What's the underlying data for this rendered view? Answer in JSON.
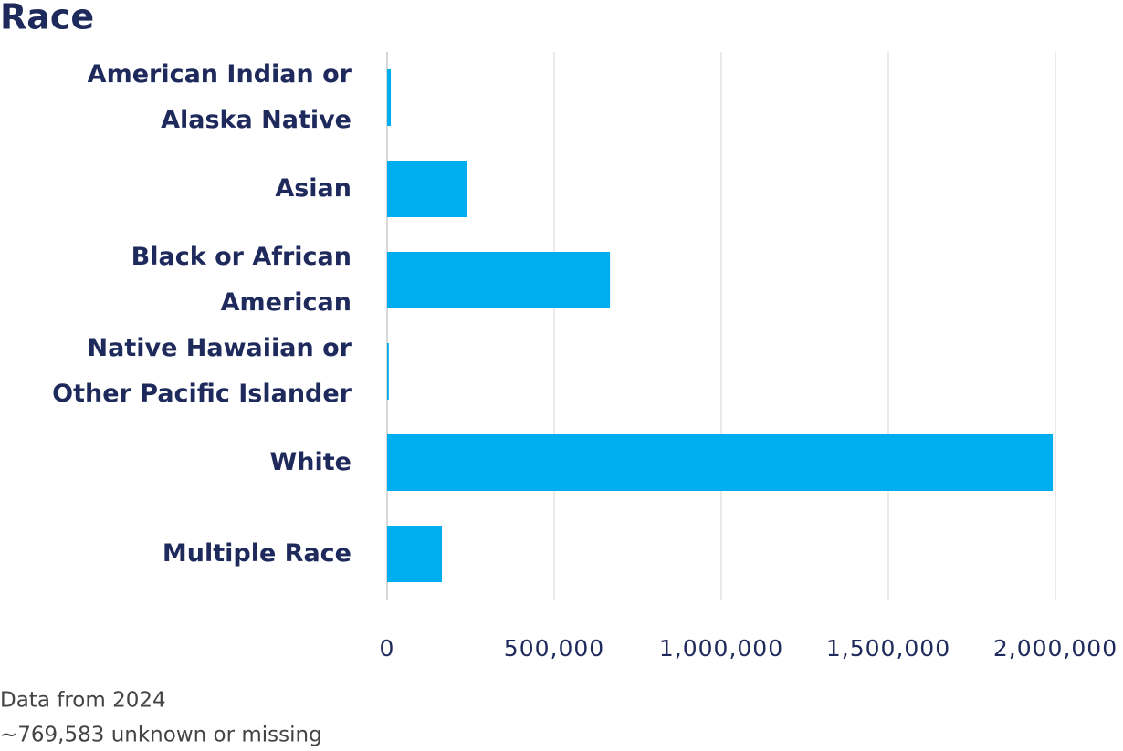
{
  "chart_data": {
    "type": "barh",
    "title": "Race",
    "categories": [
      "American Indian or Alaska Native",
      "Asian",
      "Black or African American",
      "Native Hawaiian or Other Pacific Islander",
      "White",
      "Multiple Race"
    ],
    "values": [
      11000,
      238000,
      667000,
      5000,
      1992000,
      164000
    ],
    "color": "#00aeef",
    "xlim": [
      0,
      2000000
    ],
    "xticks": [
      0,
      {
        "value": 500000,
        "label": "500,000"
      },
      {
        "value": 1000000,
        "label": "1,000,000"
      },
      {
        "value": 1500000,
        "label": "1,500,000"
      },
      {
        "value": 2000000,
        "label": "2,000,000"
      }
    ],
    "grid": true,
    "notes": [
      "Data from 2024",
      "~769,583 unknown or missing"
    ]
  }
}
